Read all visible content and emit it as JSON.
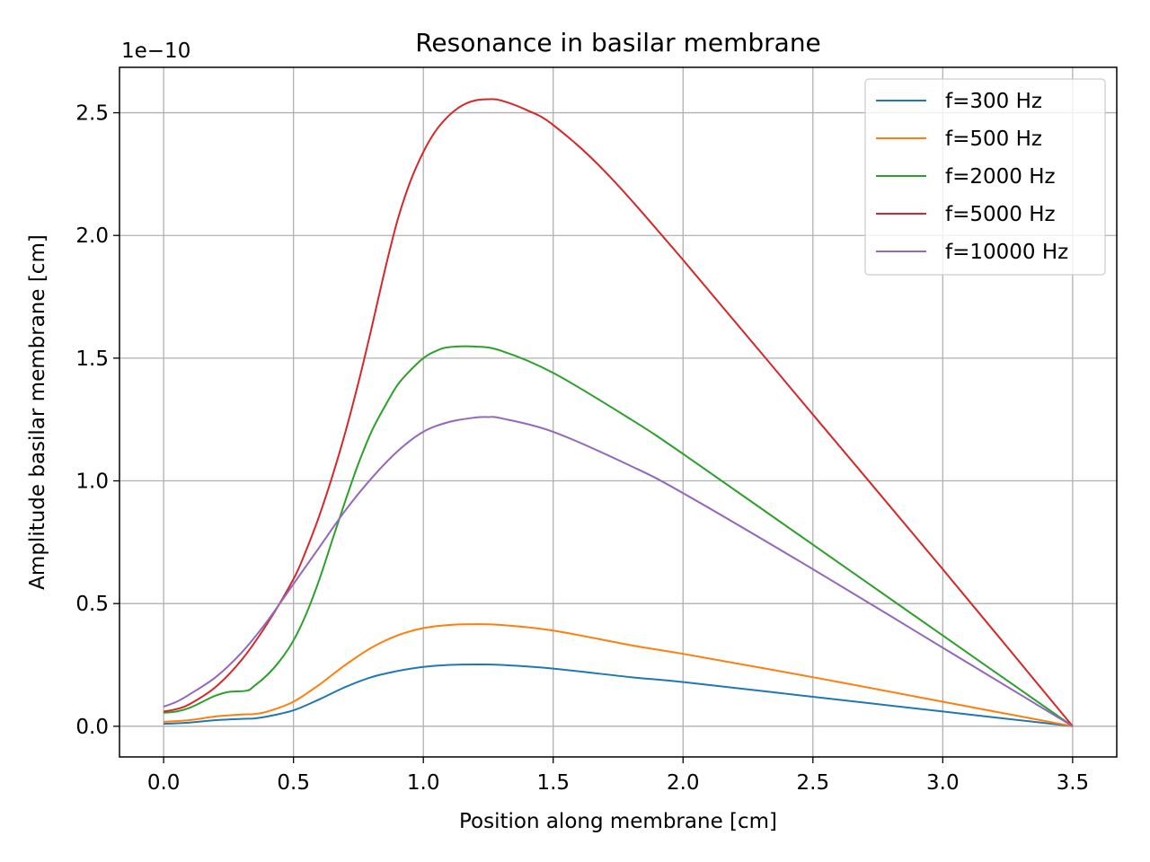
{
  "chart_data": {
    "type": "line",
    "title": "Resonance in basilar membrane",
    "xlabel": "Position along membrane [cm]",
    "ylabel": "Amplitude basilar membrane [cm]",
    "y_offset_label": "1e−10",
    "xlim": [
      -0.17,
      3.67
    ],
    "ylim": [
      -0.125,
      2.685
    ],
    "y_scale_factor": 1e-10,
    "x_ticks": [
      "0.0",
      "0.5",
      "1.0",
      "1.5",
      "2.0",
      "2.5",
      "3.0",
      "3.5"
    ],
    "x_tick_values": [
      0.0,
      0.5,
      1.0,
      1.5,
      2.0,
      2.5,
      3.0,
      3.5
    ],
    "y_ticks": [
      "0.0",
      "0.5",
      "1.0",
      "1.5",
      "2.0",
      "2.5"
    ],
    "y_tick_values": [
      0.0,
      0.5,
      1.0,
      1.5,
      2.0,
      2.5
    ],
    "grid": true,
    "legend_position": "top-right",
    "series": [
      {
        "name": "f=300 Hz",
        "color": "#1f77b4",
        "x": [
          0,
          0.1,
          0.2,
          0.3,
          0.35,
          0.4,
          0.5,
          0.6,
          0.7,
          0.8,
          0.9,
          1.0,
          1.1,
          1.2,
          1.3,
          1.5,
          1.8,
          2.0,
          2.5,
          3.0,
          3.5
        ],
        "y": [
          0.01,
          0.015,
          0.025,
          0.03,
          0.032,
          0.04,
          0.065,
          0.11,
          0.16,
          0.2,
          0.225,
          0.242,
          0.25,
          0.252,
          0.25,
          0.235,
          0.2,
          0.18,
          0.12,
          0.06,
          0.0
        ]
      },
      {
        "name": "f=500 Hz",
        "color": "#ff7f0e",
        "x": [
          0,
          0.1,
          0.2,
          0.3,
          0.35,
          0.4,
          0.5,
          0.6,
          0.7,
          0.8,
          0.9,
          1.0,
          1.1,
          1.2,
          1.3,
          1.5,
          1.8,
          2.0,
          2.5,
          3.0,
          3.5
        ],
        "y": [
          0.018,
          0.025,
          0.04,
          0.048,
          0.05,
          0.06,
          0.1,
          0.17,
          0.25,
          0.32,
          0.37,
          0.4,
          0.413,
          0.416,
          0.413,
          0.39,
          0.33,
          0.295,
          0.2,
          0.1,
          0.0
        ]
      },
      {
        "name": "f=2000 Hz",
        "color": "#2ca02c",
        "x": [
          0,
          0.05,
          0.1,
          0.15,
          0.2,
          0.25,
          0.32,
          0.35,
          0.4,
          0.45,
          0.5,
          0.55,
          0.6,
          0.65,
          0.7,
          0.75,
          0.8,
          0.85,
          0.9,
          0.95,
          1.0,
          1.05,
          1.1,
          1.2,
          1.3,
          1.5,
          1.8,
          2.0,
          2.5,
          3.0,
          3.5
        ],
        "y": [
          0.055,
          0.06,
          0.075,
          0.1,
          0.125,
          0.14,
          0.145,
          0.165,
          0.21,
          0.27,
          0.35,
          0.46,
          0.6,
          0.76,
          0.92,
          1.07,
          1.2,
          1.3,
          1.39,
          1.45,
          1.5,
          1.53,
          1.545,
          1.547,
          1.53,
          1.44,
          1.25,
          1.11,
          0.74,
          0.37,
          0.0
        ]
      },
      {
        "name": "f=5000 Hz",
        "color": "#d62728",
        "x": [
          0,
          0.05,
          0.1,
          0.2,
          0.3,
          0.4,
          0.5,
          0.55,
          0.6,
          0.65,
          0.7,
          0.75,
          0.8,
          0.85,
          0.9,
          0.95,
          1.0,
          1.05,
          1.1,
          1.15,
          1.2,
          1.25,
          1.3,
          1.4,
          1.5,
          1.7,
          2.0,
          2.5,
          3.0,
          3.5
        ],
        "y": [
          0.06,
          0.07,
          0.09,
          0.16,
          0.27,
          0.42,
          0.6,
          0.72,
          0.86,
          1.02,
          1.2,
          1.4,
          1.62,
          1.85,
          2.06,
          2.22,
          2.34,
          2.43,
          2.49,
          2.53,
          2.55,
          2.555,
          2.55,
          2.51,
          2.45,
          2.26,
          1.9,
          1.27,
          0.64,
          0.0
        ]
      },
      {
        "name": "f=10000 Hz",
        "color": "#9467bd",
        "x": [
          0,
          0.05,
          0.1,
          0.2,
          0.3,
          0.4,
          0.5,
          0.6,
          0.7,
          0.8,
          0.9,
          1.0,
          1.1,
          1.2,
          1.25,
          1.3,
          1.5,
          1.8,
          2.0,
          2.5,
          3.0,
          3.5
        ],
        "y": [
          0.08,
          0.1,
          0.13,
          0.2,
          0.3,
          0.43,
          0.58,
          0.73,
          0.88,
          1.01,
          1.12,
          1.2,
          1.24,
          1.258,
          1.26,
          1.255,
          1.2,
          1.06,
          0.95,
          0.64,
          0.32,
          0.0
        ]
      }
    ]
  }
}
